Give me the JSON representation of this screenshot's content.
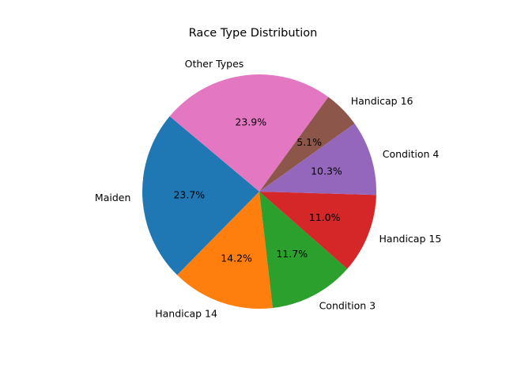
{
  "chart_data": {
    "type": "pie",
    "title": "Race Type Distribution",
    "start_angle_deg": 140,
    "direction": "counterclockwise",
    "slices": [
      {
        "label": "Maiden",
        "value": 23.7,
        "pct_text": "23.7%",
        "color": "#1f77b4"
      },
      {
        "label": "Handicap 14",
        "value": 14.2,
        "pct_text": "14.2%",
        "color": "#ff7f0e"
      },
      {
        "label": "Condition 3",
        "value": 11.7,
        "pct_text": "11.7%",
        "color": "#2ca02c"
      },
      {
        "label": "Handicap 15",
        "value": 11.0,
        "pct_text": "11.0%",
        "color": "#d62728"
      },
      {
        "label": "Condition 4",
        "value": 10.3,
        "pct_text": "10.3%",
        "color": "#9467bd"
      },
      {
        "label": "Handicap 16",
        "value": 5.1,
        "pct_text": "5.1%",
        "color": "#8c564b"
      },
      {
        "label": "Other Types",
        "value": 23.9,
        "pct_text": "23.9%",
        "color": "#e377c2"
      }
    ]
  }
}
